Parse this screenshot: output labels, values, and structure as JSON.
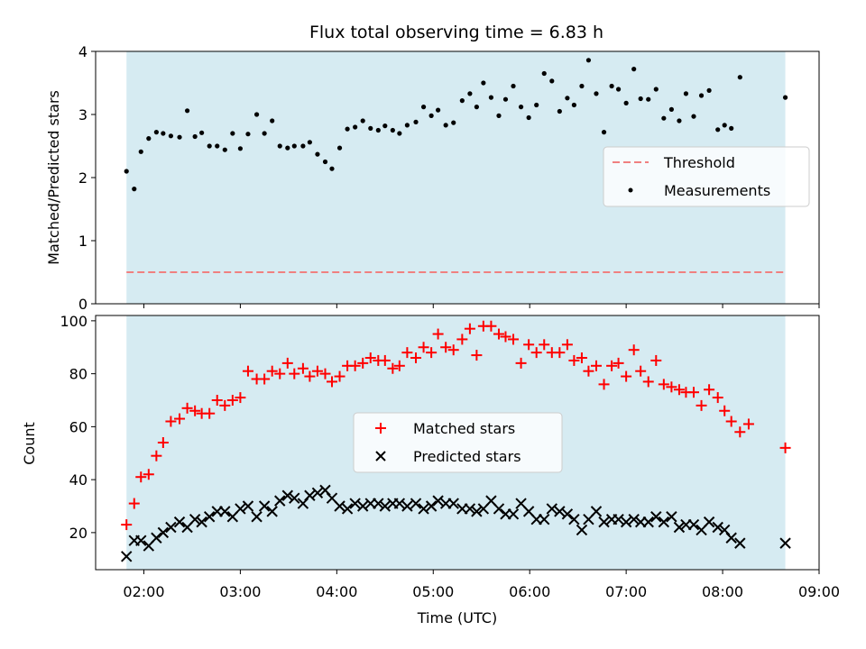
{
  "figure": {
    "title": "Flux total observing time = 6.83 h",
    "xlabel": "Time (UTC)"
  },
  "colors": {
    "shade": "#add8e6",
    "threshold": "#f08080",
    "measurements": "#000000",
    "matched": "#ff0000",
    "predicted": "#000000"
  },
  "chart_data": [
    {
      "type": "scatter",
      "panel": "top",
      "title": "Flux total observing time = 6.83 h",
      "ylabel": "Matched/Predicted stars",
      "xlim": [
        1.5,
        9.0
      ],
      "ylim": [
        0,
        4
      ],
      "yticks": [
        0,
        1,
        2,
        3,
        4
      ],
      "shaded_region": [
        1.82,
        8.65
      ],
      "threshold": {
        "name": "Threshold",
        "value": 0.5
      },
      "legend": {
        "placement": "center-right",
        "entries": [
          "Threshold",
          "Measurements"
        ]
      },
      "series": [
        {
          "name": "Measurements",
          "marker": "dot",
          "points": [
            [
              1.82,
              2.1
            ],
            [
              1.9,
              1.82
            ],
            [
              1.97,
              2.41
            ],
            [
              2.05,
              2.62
            ],
            [
              2.13,
              2.72
            ],
            [
              2.2,
              2.7
            ],
            [
              2.28,
              2.66
            ],
            [
              2.37,
              2.64
            ],
            [
              2.45,
              3.06
            ],
            [
              2.53,
              2.65
            ],
            [
              2.6,
              2.71
            ],
            [
              2.68,
              2.5
            ],
            [
              2.76,
              2.5
            ],
            [
              2.84,
              2.44
            ],
            [
              2.92,
              2.7
            ],
            [
              3.0,
              2.46
            ],
            [
              3.08,
              2.69
            ],
            [
              3.17,
              3.0
            ],
            [
              3.25,
              2.7
            ],
            [
              3.33,
              2.9
            ],
            [
              3.41,
              2.5
            ],
            [
              3.49,
              2.47
            ],
            [
              3.56,
              2.5
            ],
            [
              3.65,
              2.5
            ],
            [
              3.72,
              2.56
            ],
            [
              3.8,
              2.37
            ],
            [
              3.88,
              2.25
            ],
            [
              3.95,
              2.14
            ],
            [
              4.03,
              2.47
            ],
            [
              4.11,
              2.77
            ],
            [
              4.19,
              2.8
            ],
            [
              4.27,
              2.9
            ],
            [
              4.35,
              2.78
            ],
            [
              4.43,
              2.75
            ],
            [
              4.5,
              2.82
            ],
            [
              4.58,
              2.75
            ],
            [
              4.65,
              2.7
            ],
            [
              4.73,
              2.83
            ],
            [
              4.82,
              2.88
            ],
            [
              4.9,
              3.12
            ],
            [
              4.98,
              2.98
            ],
            [
              5.05,
              3.07
            ],
            [
              5.13,
              2.83
            ],
            [
              5.21,
              2.87
            ],
            [
              5.3,
              3.22
            ],
            [
              5.38,
              3.33
            ],
            [
              5.45,
              3.12
            ],
            [
              5.52,
              3.5
            ],
            [
              5.6,
              3.27
            ],
            [
              5.68,
              2.98
            ],
            [
              5.75,
              3.24
            ],
            [
              5.83,
              3.45
            ],
            [
              5.91,
              3.12
            ],
            [
              5.99,
              2.95
            ],
            [
              6.07,
              3.15
            ],
            [
              6.15,
              3.65
            ],
            [
              6.23,
              3.53
            ],
            [
              6.31,
              3.05
            ],
            [
              6.39,
              3.26
            ],
            [
              6.46,
              3.15
            ],
            [
              6.54,
              3.45
            ],
            [
              6.61,
              3.86
            ],
            [
              6.69,
              3.33
            ],
            [
              6.77,
              2.72
            ],
            [
              6.85,
              3.45
            ],
            [
              6.92,
              3.4
            ],
            [
              7.0,
              3.18
            ],
            [
              7.08,
              3.72
            ],
            [
              7.15,
              3.25
            ],
            [
              7.23,
              3.24
            ],
            [
              7.31,
              3.4
            ],
            [
              7.39,
              2.94
            ],
            [
              7.47,
              3.08
            ],
            [
              7.55,
              2.9
            ],
            [
              7.62,
              3.33
            ],
            [
              7.7,
              2.97
            ],
            [
              7.78,
              3.3
            ],
            [
              7.86,
              3.38
            ],
            [
              7.95,
              2.76
            ],
            [
              8.02,
              2.83
            ],
            [
              8.09,
              2.78
            ],
            [
              8.18,
              3.59
            ],
            [
              8.65,
              3.27
            ]
          ]
        }
      ]
    },
    {
      "type": "scatter",
      "panel": "bottom",
      "ylabel": "Count",
      "xlabel": "Time (UTC)",
      "xlim": [
        1.5,
        9.0
      ],
      "ylim": [
        6,
        102
      ],
      "yticks": [
        20,
        40,
        60,
        80,
        100
      ],
      "xticks": [
        2,
        3,
        4,
        5,
        6,
        7,
        8,
        9
      ],
      "xticklabels": [
        "02:00",
        "03:00",
        "04:00",
        "05:00",
        "06:00",
        "07:00",
        "08:00",
        "09:00"
      ],
      "shaded_region": [
        1.82,
        8.65
      ],
      "legend": {
        "placement": "center",
        "entries": [
          "Matched stars",
          "Predicted stars"
        ]
      },
      "series": [
        {
          "name": "Matched stars",
          "marker": "plus",
          "points": [
            [
              1.82,
              23
            ],
            [
              1.9,
              31
            ],
            [
              1.97,
              41
            ],
            [
              2.05,
              42
            ],
            [
              2.13,
              49
            ],
            [
              2.2,
              54
            ],
            [
              2.28,
              62
            ],
            [
              2.37,
              63
            ],
            [
              2.45,
              67
            ],
            [
              2.53,
              66
            ],
            [
              2.6,
              65
            ],
            [
              2.68,
              65
            ],
            [
              2.76,
              70
            ],
            [
              2.84,
              68
            ],
            [
              2.92,
              70
            ],
            [
              3.0,
              71
            ],
            [
              3.08,
              81
            ],
            [
              3.17,
              78
            ],
            [
              3.25,
              78
            ],
            [
              3.33,
              81
            ],
            [
              3.41,
              80
            ],
            [
              3.49,
              84
            ],
            [
              3.56,
              80
            ],
            [
              3.65,
              82
            ],
            [
              3.72,
              79
            ],
            [
              3.8,
              81
            ],
            [
              3.88,
              80
            ],
            [
              3.95,
              77
            ],
            [
              4.03,
              79
            ],
            [
              4.11,
              83
            ],
            [
              4.19,
              83
            ],
            [
              4.27,
              84
            ],
            [
              4.35,
              86
            ],
            [
              4.43,
              85
            ],
            [
              4.5,
              85
            ],
            [
              4.58,
              82
            ],
            [
              4.65,
              83
            ],
            [
              4.73,
              88
            ],
            [
              4.82,
              86
            ],
            [
              4.9,
              90
            ],
            [
              4.98,
              88
            ],
            [
              5.05,
              95
            ],
            [
              5.13,
              90
            ],
            [
              5.21,
              89
            ],
            [
              5.3,
              93
            ],
            [
              5.38,
              97
            ],
            [
              5.45,
              87
            ],
            [
              5.52,
              98
            ],
            [
              5.6,
              98
            ],
            [
              5.68,
              95
            ],
            [
              5.75,
              94
            ],
            [
              5.83,
              93
            ],
            [
              5.91,
              84
            ],
            [
              5.99,
              91
            ],
            [
              6.07,
              88
            ],
            [
              6.15,
              91
            ],
            [
              6.23,
              88
            ],
            [
              6.31,
              88
            ],
            [
              6.39,
              91
            ],
            [
              6.46,
              85
            ],
            [
              6.54,
              86
            ],
            [
              6.61,
              81
            ],
            [
              6.69,
              83
            ],
            [
              6.77,
              76
            ],
            [
              6.85,
              83
            ],
            [
              6.92,
              84
            ],
            [
              7.0,
              79
            ],
            [
              7.08,
              89
            ],
            [
              7.15,
              81
            ],
            [
              7.23,
              77
            ],
            [
              7.31,
              85
            ],
            [
              7.39,
              76
            ],
            [
              7.47,
              75
            ],
            [
              7.55,
              74
            ],
            [
              7.62,
              73
            ],
            [
              7.7,
              73
            ],
            [
              7.78,
              68
            ],
            [
              7.86,
              74
            ],
            [
              7.95,
              71
            ],
            [
              8.02,
              66
            ],
            [
              8.09,
              62
            ],
            [
              8.18,
              58
            ],
            [
              8.27,
              61
            ],
            [
              8.65,
              52
            ]
          ]
        },
        {
          "name": "Predicted stars",
          "marker": "x",
          "points": [
            [
              1.82,
              11
            ],
            [
              1.9,
              17
            ],
            [
              1.97,
              17
            ],
            [
              2.05,
              15
            ],
            [
              2.13,
              18
            ],
            [
              2.2,
              20
            ],
            [
              2.28,
              22
            ],
            [
              2.37,
              24
            ],
            [
              2.45,
              22
            ],
            [
              2.53,
              25
            ],
            [
              2.6,
              24
            ],
            [
              2.68,
              26
            ],
            [
              2.76,
              28
            ],
            [
              2.84,
              28
            ],
            [
              2.92,
              26
            ],
            [
              3.0,
              29
            ],
            [
              3.08,
              30
            ],
            [
              3.17,
              26
            ],
            [
              3.25,
              30
            ],
            [
              3.33,
              28
            ],
            [
              3.41,
              32
            ],
            [
              3.49,
              34
            ],
            [
              3.56,
              33
            ],
            [
              3.65,
              31
            ],
            [
              3.72,
              34
            ],
            [
              3.8,
              35
            ],
            [
              3.88,
              36
            ],
            [
              3.95,
              33
            ],
            [
              4.03,
              30
            ],
            [
              4.11,
              29
            ],
            [
              4.19,
              31
            ],
            [
              4.27,
              30
            ],
            [
              4.35,
              31
            ],
            [
              4.43,
              31
            ],
            [
              4.5,
              30
            ],
            [
              4.58,
              31
            ],
            [
              4.65,
              31
            ],
            [
              4.73,
              30
            ],
            [
              4.82,
              31
            ],
            [
              4.9,
              29
            ],
            [
              4.98,
              30
            ],
            [
              5.05,
              32
            ],
            [
              5.13,
              31
            ],
            [
              5.21,
              31
            ],
            [
              5.3,
              29
            ],
            [
              5.38,
              29
            ],
            [
              5.45,
              28
            ],
            [
              5.52,
              29
            ],
            [
              5.6,
              32
            ],
            [
              5.68,
              29
            ],
            [
              5.75,
              27
            ],
            [
              5.83,
              27
            ],
            [
              5.91,
              31
            ],
            [
              5.99,
              28
            ],
            [
              6.07,
              25
            ],
            [
              6.15,
              25
            ],
            [
              6.23,
              29
            ],
            [
              6.31,
              28
            ],
            [
              6.39,
              27
            ],
            [
              6.46,
              25
            ],
            [
              6.54,
              21
            ],
            [
              6.61,
              25
            ],
            [
              6.69,
              28
            ],
            [
              6.77,
              24
            ],
            [
              6.85,
              25
            ],
            [
              6.92,
              25
            ],
            [
              7.0,
              24
            ],
            [
              7.08,
              25
            ],
            [
              7.15,
              24
            ],
            [
              7.23,
              24
            ],
            [
              7.31,
              26
            ],
            [
              7.39,
              24
            ],
            [
              7.47,
              26
            ],
            [
              7.55,
              22
            ],
            [
              7.62,
              23
            ],
            [
              7.7,
              23
            ],
            [
              7.78,
              21
            ],
            [
              7.86,
              24
            ],
            [
              7.95,
              22
            ],
            [
              8.02,
              21
            ],
            [
              8.09,
              18
            ],
            [
              8.18,
              16
            ],
            [
              8.65,
              16
            ]
          ]
        }
      ]
    }
  ]
}
